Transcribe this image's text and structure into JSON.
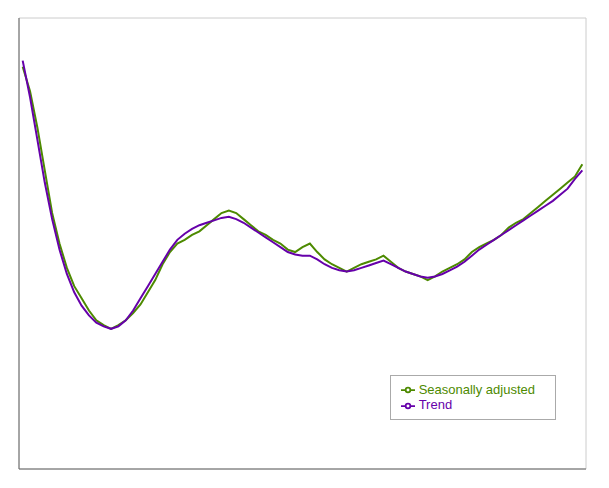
{
  "chart_data": {
    "type": "line",
    "title": "",
    "x": [
      0,
      1,
      2,
      3,
      4,
      5,
      6,
      7,
      8,
      9,
      10,
      11,
      12,
      13,
      14,
      15,
      16,
      17,
      18,
      19,
      20,
      21,
      22,
      23,
      24,
      25,
      26,
      27,
      28,
      29,
      30,
      31,
      32,
      33,
      34,
      35,
      36,
      37,
      38,
      39,
      40,
      41,
      42,
      43,
      44,
      45,
      46,
      47,
      48,
      49,
      50,
      51,
      52,
      53,
      54,
      55,
      56,
      57,
      58,
      59,
      60,
      61,
      62,
      63,
      64,
      65,
      66,
      67,
      68,
      69,
      70,
      71,
      72,
      73,
      74,
      75,
      76
    ],
    "series": [
      {
        "name": "Seasonally adjusted",
        "color": "#4d8a00",
        "values": [
          4.8,
          4.6,
          4.3,
          3.95,
          3.6,
          3.35,
          3.15,
          3.0,
          2.9,
          2.8,
          2.72,
          2.68,
          2.65,
          2.68,
          2.72,
          2.78,
          2.85,
          2.95,
          3.05,
          3.18,
          3.28,
          3.35,
          3.38,
          3.42,
          3.45,
          3.5,
          3.55,
          3.6,
          3.62,
          3.6,
          3.55,
          3.5,
          3.45,
          3.42,
          3.38,
          3.35,
          3.3,
          3.28,
          3.32,
          3.35,
          3.28,
          3.22,
          3.18,
          3.15,
          3.12,
          3.15,
          3.18,
          3.2,
          3.22,
          3.25,
          3.2,
          3.15,
          3.12,
          3.1,
          3.08,
          3.05,
          3.08,
          3.12,
          3.15,
          3.18,
          3.22,
          3.28,
          3.32,
          3.35,
          3.38,
          3.42,
          3.48,
          3.52,
          3.55,
          3.6,
          3.65,
          3.7,
          3.75,
          3.8,
          3.85,
          3.9,
          4.0
        ]
      },
      {
        "name": "Trend",
        "color": "#6600aa",
        "values": [
          4.85,
          4.55,
          4.2,
          3.85,
          3.55,
          3.3,
          3.1,
          2.95,
          2.84,
          2.76,
          2.7,
          2.67,
          2.65,
          2.67,
          2.72,
          2.8,
          2.9,
          3.0,
          3.1,
          3.2,
          3.3,
          3.38,
          3.43,
          3.47,
          3.5,
          3.52,
          3.54,
          3.56,
          3.57,
          3.55,
          3.52,
          3.48,
          3.44,
          3.4,
          3.36,
          3.32,
          3.28,
          3.26,
          3.25,
          3.25,
          3.22,
          3.18,
          3.15,
          3.13,
          3.12,
          3.13,
          3.15,
          3.17,
          3.19,
          3.21,
          3.18,
          3.15,
          3.12,
          3.1,
          3.08,
          3.07,
          3.08,
          3.1,
          3.13,
          3.16,
          3.2,
          3.25,
          3.3,
          3.34,
          3.38,
          3.42,
          3.46,
          3.5,
          3.54,
          3.58,
          3.62,
          3.66,
          3.7,
          3.75,
          3.8,
          3.88,
          3.95
        ]
      }
    ],
    "xlim": [
      -0.5,
      76.5
    ],
    "xticks": [
      0,
      7.7,
      15.4,
      23.1,
      30.8,
      38.5,
      46.2,
      53.9,
      61.6,
      69.3
    ],
    "ylim": [
      1.5,
      5.2
    ],
    "yticks": [
      1.84,
      2.3,
      2.76,
      3.22,
      3.68,
      4.14,
      4.6,
      5.06
    ],
    "grid": true,
    "legend": "lower right",
    "tick_labels": false
  }
}
